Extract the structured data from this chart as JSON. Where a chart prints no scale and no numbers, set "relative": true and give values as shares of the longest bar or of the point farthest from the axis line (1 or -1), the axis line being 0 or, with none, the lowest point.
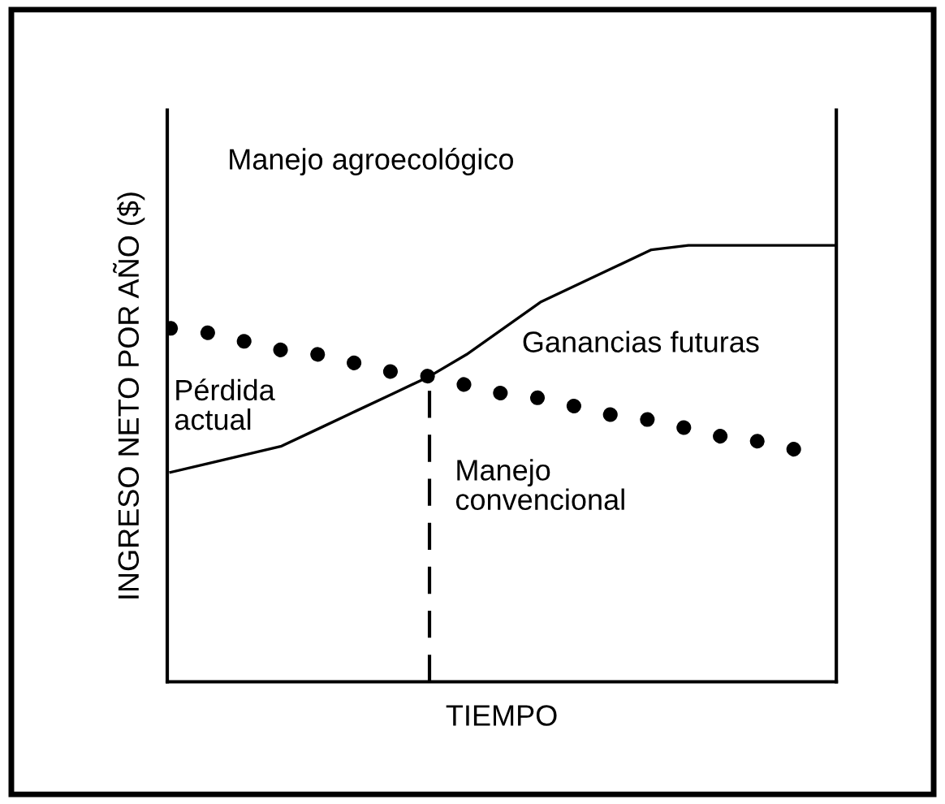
{
  "chart_data": {
    "type": "line",
    "relative": true,
    "xlabel": "TIEMPO",
    "ylabel": "INGRESO NETO POR AÑO ($)",
    "categories": [
      null,
      null,
      null,
      null,
      null,
      null,
      null,
      null,
      null,
      null,
      null,
      null,
      null,
      null,
      null,
      null,
      null,
      null,
      null
    ],
    "series": [
      {
        "color": "#000000",
        "line_style": "solid",
        "values": [
          0.48,
          0.5,
          0.52,
          0.54,
          0.58,
          0.62,
          0.66,
          0.7,
          0.75,
          0.81,
          0.87,
          0.91,
          0.95,
          0.99,
          1,
          1,
          1,
          1,
          1
        ]
      },
      {
        "color": "#000000",
        "line_style": "dotted",
        "values": [
          0.81,
          0.8,
          0.78,
          0.76,
          0.75,
          0.73,
          0.71,
          0.7,
          0.68,
          0.66,
          0.65,
          0.63,
          0.61,
          0.6,
          0.58,
          0.56,
          0.55,
          0.53,
          null
        ]
      }
    ],
    "ref_lines": [
      {
        "axis": "x",
        "line_style": "dashed",
        "color": "#000000"
      }
    ],
    "annotations": [
      "Manejo agroecológico",
      "Ganancias futuras",
      "Pérdida\nactual",
      "Manejo\nconvencional"
    ]
  }
}
